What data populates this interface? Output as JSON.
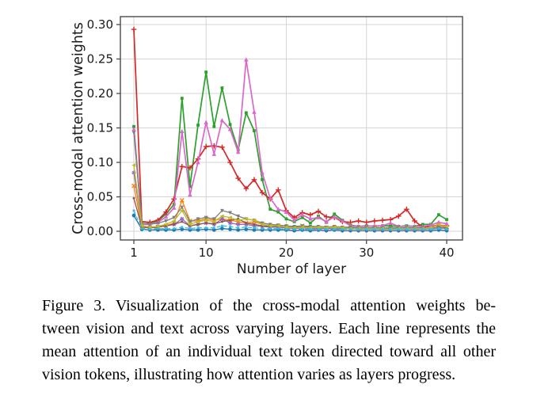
{
  "page": {
    "background": "#ffffff"
  },
  "figure_caption": {
    "lines": [
      "Figure 3.  Visualization of the cross-modal attention weights be-",
      "tween vision and text across varying layers. Each line represents the",
      "mean attention of an individual text token directed toward all other",
      "vision tokens, illustrating how attention varies as layers progress."
    ],
    "full_text": "Figure 3. Visualization of the cross-modal attention weights between vision and text across varying layers. Each line represents the mean attention of an individual text token directed toward all other vision tokens, illustrating how attention varies as layers progress."
  },
  "chart_data": {
    "type": "line",
    "title": "",
    "xlabel": "Number of layer",
    "ylabel": "Cross-modal attention weights",
    "xlim": [
      -0.68,
      41.97
    ],
    "ylim": [
      -0.0126,
      0.3115
    ],
    "xticks": [
      1,
      10,
      20,
      30,
      40
    ],
    "yticks": [
      0.0,
      0.05,
      0.1,
      0.15,
      0.2,
      0.25,
      0.3
    ],
    "ytick_labels": [
      "0.00",
      "0.05",
      "0.10",
      "0.15",
      "0.20",
      "0.25",
      "0.30"
    ],
    "grid": true,
    "legend_position": "none",
    "grid_color": "#d4d4d4",
    "frame_color": "#4a4a4a",
    "tick_text_color": "#1a1a1a",
    "x": [
      1,
      2,
      3,
      4,
      5,
      6,
      7,
      8,
      9,
      10,
      11,
      12,
      13,
      14,
      15,
      16,
      17,
      18,
      19,
      20,
      21,
      22,
      23,
      24,
      25,
      26,
      27,
      28,
      29,
      30,
      31,
      32,
      33,
      34,
      35,
      36,
      37,
      38,
      39,
      40
    ],
    "series": [
      {
        "name": "text-token-1-blue",
        "color": "#1f77b4",
        "marker": "circle",
        "line_width": 1.4,
        "dash": "",
        "values": [
          0.023,
          0.003,
          0.002,
          0.002,
          0.002,
          0.002,
          0.003,
          0.002,
          0.002,
          0.003,
          0.002,
          0.004,
          0.003,
          0.002,
          0.003,
          0.002,
          0.002,
          0.002,
          0.002,
          0.002,
          0.001,
          0.002,
          0.001,
          0.002,
          0.001,
          0.002,
          0.001,
          0.001,
          0.001,
          0.001,
          0.001,
          0.001,
          0.001,
          0.001,
          0.001,
          0.001,
          0.001,
          0.001,
          0.002,
          0.001
        ]
      },
      {
        "name": "text-token-2-orange",
        "color": "#ff7f0e",
        "marker": "x",
        "line_width": 1.3,
        "dash": "",
        "values": [
          0.066,
          0.006,
          0.005,
          0.006,
          0.008,
          0.012,
          0.045,
          0.015,
          0.015,
          0.018,
          0.016,
          0.018,
          0.016,
          0.014,
          0.012,
          0.014,
          0.01,
          0.008,
          0.008,
          0.006,
          0.005,
          0.008,
          0.005,
          0.005,
          0.005,
          0.005,
          0.004,
          0.004,
          0.004,
          0.004,
          0.004,
          0.004,
          0.004,
          0.004,
          0.005,
          0.004,
          0.004,
          0.005,
          0.009,
          0.006
        ]
      },
      {
        "name": "text-token-3-green",
        "color": "#2ca02c",
        "marker": "square",
        "line_width": 1.7,
        "dash": "",
        "values": [
          0.152,
          0.01,
          0.012,
          0.015,
          0.025,
          0.039,
          0.193,
          0.065,
          0.154,
          0.231,
          0.152,
          0.208,
          0.155,
          0.118,
          0.172,
          0.146,
          0.075,
          0.032,
          0.028,
          0.018,
          0.014,
          0.02,
          0.012,
          0.022,
          0.013,
          0.025,
          0.016,
          0.009,
          0.007,
          0.008,
          0.007,
          0.008,
          0.008,
          0.007,
          0.008,
          0.007,
          0.01,
          0.01,
          0.024,
          0.017
        ]
      },
      {
        "name": "text-token-4-red",
        "color": "#d62728",
        "marker": "plus",
        "line_width": 1.7,
        "dash": "",
        "values": [
          0.293,
          0.014,
          0.013,
          0.016,
          0.028,
          0.047,
          0.094,
          0.092,
          0.105,
          0.123,
          0.124,
          0.122,
          0.1,
          0.077,
          0.062,
          0.075,
          0.056,
          0.047,
          0.06,
          0.03,
          0.02,
          0.027,
          0.024,
          0.029,
          0.021,
          0.02,
          0.014,
          0.013,
          0.015,
          0.013,
          0.015,
          0.016,
          0.017,
          0.022,
          0.032,
          0.015,
          0.006,
          0.007,
          0.009,
          0.008
        ]
      },
      {
        "name": "text-token-5-purple",
        "color": "#9467bd",
        "marker": "star",
        "line_width": 1.3,
        "dash": "",
        "values": [
          0.085,
          0.008,
          0.006,
          0.007,
          0.008,
          0.01,
          0.018,
          0.008,
          0.01,
          0.012,
          0.01,
          0.018,
          0.012,
          0.01,
          0.01,
          0.008,
          0.007,
          0.006,
          0.006,
          0.005,
          0.004,
          0.005,
          0.004,
          0.004,
          0.004,
          0.004,
          0.004,
          0.004,
          0.003,
          0.003,
          0.003,
          0.003,
          0.003,
          0.003,
          0.003,
          0.003,
          0.003,
          0.003,
          0.005,
          0.004
        ]
      },
      {
        "name": "text-token-6-brown",
        "color": "#8c564b",
        "marker": "dot",
        "line_width": 1.3,
        "dash": "",
        "values": [
          0.048,
          0.006,
          0.005,
          0.006,
          0.008,
          0.01,
          0.014,
          0.008,
          0.01,
          0.012,
          0.011,
          0.014,
          0.016,
          0.018,
          0.012,
          0.01,
          0.008,
          0.007,
          0.007,
          0.006,
          0.006,
          0.008,
          0.006,
          0.007,
          0.006,
          0.006,
          0.005,
          0.005,
          0.005,
          0.005,
          0.005,
          0.005,
          0.005,
          0.005,
          0.005,
          0.004,
          0.004,
          0.004,
          0.006,
          0.005
        ]
      },
      {
        "name": "text-token-7-pink",
        "color": "#d968c8",
        "marker": "triangle-up",
        "line_width": 1.7,
        "dash": "",
        "values": [
          0.148,
          0.01,
          0.01,
          0.013,
          0.021,
          0.034,
          0.145,
          0.053,
          0.1,
          0.158,
          0.112,
          0.161,
          0.148,
          0.115,
          0.249,
          0.173,
          0.085,
          0.048,
          0.032,
          0.028,
          0.016,
          0.024,
          0.018,
          0.02,
          0.014,
          0.021,
          0.015,
          0.008,
          0.007,
          0.007,
          0.008,
          0.008,
          0.012,
          0.007,
          0.007,
          0.007,
          0.007,
          0.009,
          0.013,
          0.011
        ]
      },
      {
        "name": "text-token-8-gray",
        "color": "#7f7f7f",
        "marker": "triangle-down",
        "line_width": 1.3,
        "dash": "",
        "values": [
          0.143,
          0.012,
          0.01,
          0.012,
          0.015,
          0.02,
          0.035,
          0.014,
          0.018,
          0.02,
          0.018,
          0.03,
          0.027,
          0.022,
          0.018,
          0.016,
          0.012,
          0.01,
          0.009,
          0.008,
          0.007,
          0.008,
          0.007,
          0.007,
          0.006,
          0.007,
          0.006,
          0.006,
          0.005,
          0.005,
          0.005,
          0.005,
          0.005,
          0.005,
          0.005,
          0.005,
          0.005,
          0.004,
          0.006,
          0.004
        ]
      },
      {
        "name": "text-token-9-olive",
        "color": "#bcbd22",
        "marker": "tri-left",
        "line_width": 1.3,
        "dash": "",
        "values": [
          0.096,
          0.008,
          0.006,
          0.007,
          0.01,
          0.015,
          0.03,
          0.01,
          0.014,
          0.016,
          0.014,
          0.022,
          0.02,
          0.016,
          0.018,
          0.016,
          0.01,
          0.008,
          0.008,
          0.006,
          0.005,
          0.006,
          0.005,
          0.006,
          0.005,
          0.006,
          0.005,
          0.004,
          0.004,
          0.004,
          0.004,
          0.004,
          0.003,
          0.004,
          0.004,
          0.004,
          0.004,
          0.005,
          0.01,
          0.007
        ]
      },
      {
        "name": "text-token-10-cyan",
        "color": "#33bfdf",
        "marker": "square-small",
        "line_width": 1.3,
        "dash": "5 3",
        "values": [
          0.03,
          0.004,
          0.003,
          0.004,
          0.004,
          0.004,
          0.006,
          0.004,
          0.005,
          0.005,
          0.005,
          0.008,
          0.007,
          0.005,
          0.006,
          0.005,
          0.004,
          0.004,
          0.004,
          0.003,
          0.003,
          0.003,
          0.003,
          0.003,
          0.003,
          0.003,
          0.003,
          0.003,
          0.003,
          0.003,
          0.003,
          0.003,
          0.003,
          0.003,
          0.003,
          0.003,
          0.003,
          0.003,
          0.004,
          0.003
        ]
      }
    ]
  }
}
